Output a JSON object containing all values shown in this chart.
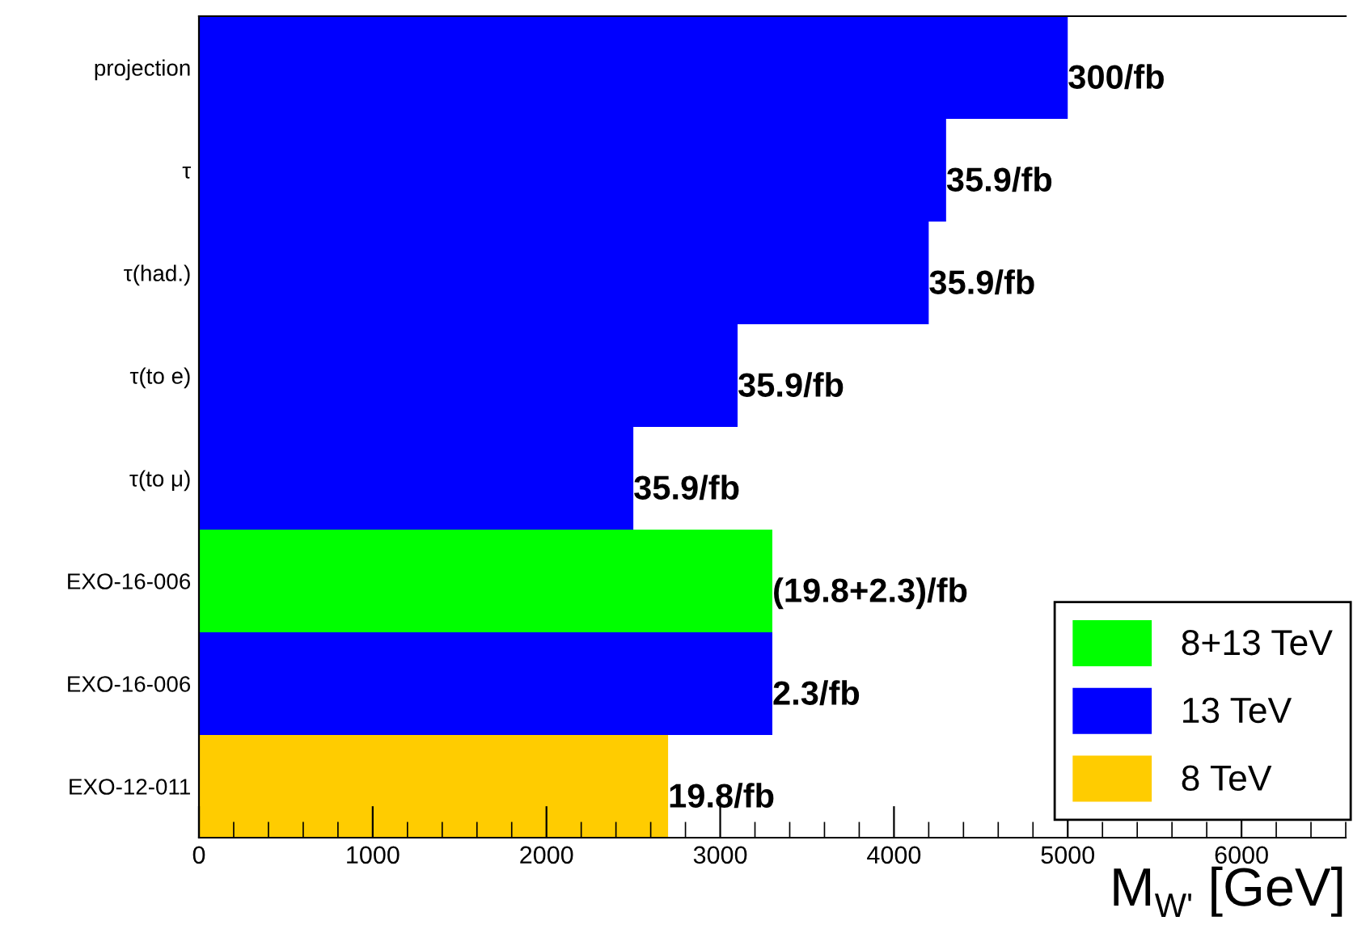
{
  "chart_data": {
    "type": "bar",
    "orientation": "horizontal",
    "categories": [
      "projection",
      "τ",
      "τ(had.)",
      "τ(to e)",
      "τ(to μ)",
      "EXO-16-006",
      "EXO-16-006",
      "EXO-12-011"
    ],
    "series": [
      {
        "name": "8+13 TeV",
        "color": "#00ff00",
        "values": [
          null,
          null,
          null,
          null,
          null,
          3300,
          null,
          null
        ]
      },
      {
        "name": "13 TeV",
        "color": "#0000ff",
        "values": [
          5000,
          4300,
          4200,
          3100,
          2500,
          null,
          3300,
          null
        ]
      },
      {
        "name": "8 TeV",
        "color": "#ffcc00",
        "values": [
          null,
          null,
          null,
          null,
          null,
          null,
          null,
          2700
        ]
      }
    ],
    "annotations": [
      {
        "text": "300/fb",
        "x": 5000,
        "y": "projection"
      },
      {
        "text": "35.9/fb",
        "x": 4300,
        "y": "τ"
      },
      {
        "text": "35.9/fb",
        "x": 4200,
        "y": "τ(had.)"
      },
      {
        "text": "35.9/fb",
        "x": 3100,
        "y": "τ(to e)"
      },
      {
        "text": "35.9/fb",
        "x": 2500,
        "y": "τ(to μ)"
      },
      {
        "text": "(19.8+2.3)/fb",
        "x": 3300,
        "y": "EXO-16-006"
      },
      {
        "text": "2.3/fb",
        "x": 3300,
        "y": "EXO-16-006"
      },
      {
        "text": "19.8/fb",
        "x": 2700,
        "y": "EXO-12-011"
      }
    ],
    "xlabel": "M$_{W'}$ [GeV]",
    "xlim": [
      0,
      6600
    ],
    "xticks": [
      0,
      1000,
      2000,
      3000,
      4000,
      5000,
      6000
    ],
    "grid": false,
    "legend": "bottom right"
  }
}
